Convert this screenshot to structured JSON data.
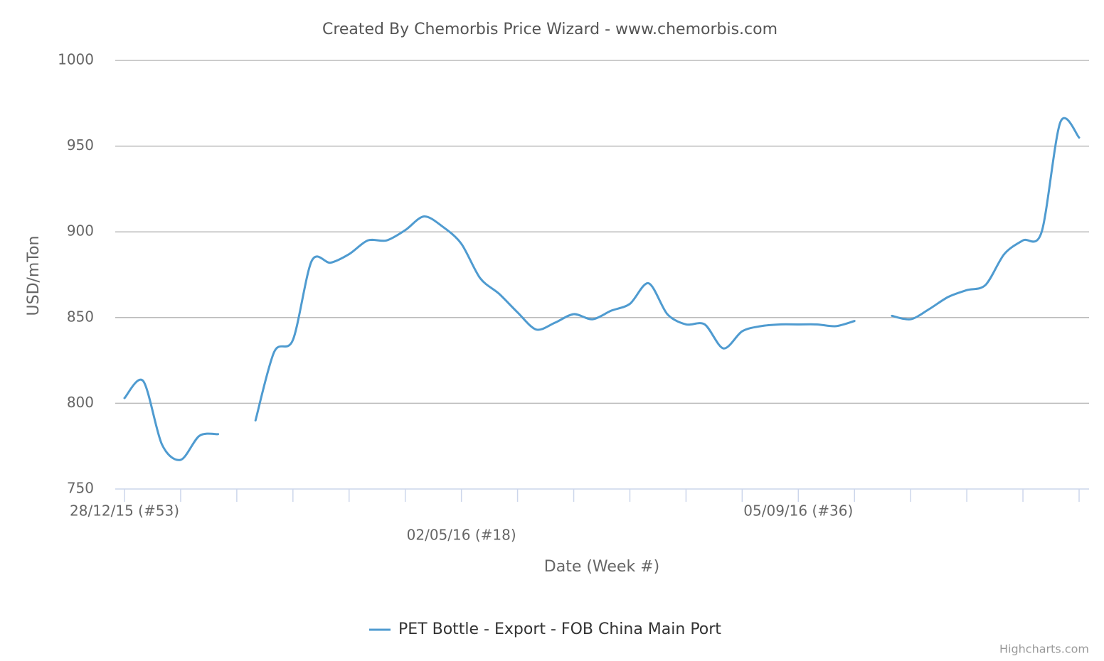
{
  "chart_data": {
    "type": "line",
    "title": "Created By Chemorbis Price Wizard - www.chemorbis.com",
    "x_label": "Date (Week #)",
    "y_label": "USD/mTon",
    "credits": "Highcharts.com",
    "categories": [
      "28/12/15 (#53)",
      null,
      null,
      null,
      null,
      null,
      null,
      null,
      null,
      null,
      null,
      null,
      null,
      null,
      null,
      null,
      null,
      null,
      "02/05/16 (#18)",
      null,
      null,
      null,
      null,
      null,
      null,
      null,
      null,
      null,
      null,
      null,
      null,
      null,
      null,
      null,
      null,
      null,
      "05/09/16 (#36)",
      null,
      null,
      null,
      null,
      null,
      null,
      null,
      null,
      null,
      null,
      null,
      null,
      null,
      null,
      null
    ],
    "series": [
      {
        "name": "PET Bottle - Export - FOB China Main Port",
        "color": "#4f9bd0",
        "values": [
          803,
          813,
          776,
          767,
          781,
          782,
          null,
          790,
          830,
          837,
          883,
          882,
          887,
          895,
          895,
          901,
          909,
          903,
          893,
          873,
          864,
          853,
          843,
          847,
          852,
          849,
          854,
          858,
          870,
          852,
          846,
          846,
          832,
          842,
          845,
          846,
          846,
          846,
          845,
          848,
          null,
          851,
          849,
          855,
          862,
          866,
          869,
          887,
          895,
          900,
          964,
          955
        ]
      }
    ],
    "ylim": [
      750,
      1000
    ],
    "yticks": [
      750,
      800,
      850,
      900,
      950,
      1000
    ],
    "grid": true,
    "legend": "bottom"
  }
}
